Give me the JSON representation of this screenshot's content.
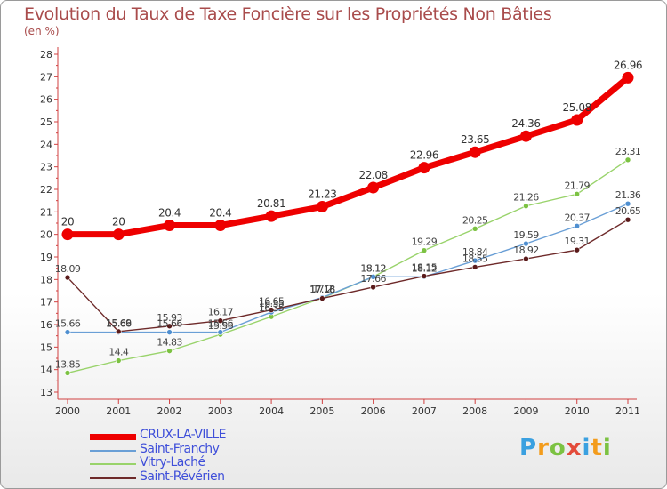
{
  "title": "Evolution du Taux de Taxe Foncière sur les Propriétés Non Bâties",
  "unit_label": "(en %)",
  "logo": {
    "letters": [
      "P",
      "r",
      "o",
      "x",
      "i",
      "t",
      "i"
    ],
    "colors": [
      "#3aa0e0",
      "#f39c1c",
      "#7cc242",
      "#e34b3a",
      "#3aa0e0",
      "#f39c1c",
      "#7cc242"
    ]
  },
  "chart_data": {
    "type": "line",
    "x": [
      "2000",
      "2001",
      "2002",
      "2003",
      "2004",
      "2005",
      "2006",
      "2007",
      "2008",
      "2009",
      "2010",
      "2011"
    ],
    "ylim": [
      13,
      28
    ],
    "yticks": [
      "13",
      "14",
      "15",
      "16",
      "17",
      "18",
      "19",
      "20",
      "21",
      "22",
      "23",
      "24",
      "25",
      "26",
      "27",
      "28"
    ],
    "grid": false,
    "legend_position": "bottom-left",
    "series": [
      {
        "name": "CRUX-LA-VILLE",
        "color": "#ee0000",
        "values": [
          20,
          20,
          20.4,
          20.4,
          20.81,
          21.23,
          22.08,
          22.96,
          23.65,
          24.36,
          25.08,
          26.96
        ],
        "labels": [
          "20",
          "20",
          "20.4",
          "20.4",
          "20.81",
          "21.23",
          "22.08",
          "22.96",
          "23.65",
          "24.36",
          "25.08",
          "26.96"
        ]
      },
      {
        "name": "Saint-Franchy",
        "color": "#6a9fd6",
        "values": [
          15.66,
          15.66,
          15.66,
          15.66,
          16.55,
          17.2,
          18.12,
          18.12,
          18.84,
          19.59,
          20.37,
          21.36
        ],
        "labels": [
          "15.66",
          "15.66",
          "15.66",
          "15.66",
          "16.55",
          "17.2",
          "18.12",
          "18.12",
          "18.84",
          "19.59",
          "20.37",
          "21.36"
        ]
      },
      {
        "name": "Vitry-Laché",
        "color": "#99d36b",
        "values": [
          13.85,
          14.4,
          14.83,
          15.56,
          16.35,
          17.18,
          18.12,
          19.29,
          20.25,
          21.26,
          21.79,
          23.31
        ],
        "labels": [
          "13.85",
          "14.4",
          "14.83",
          "15.56",
          "16.35",
          "17.18",
          "18.12",
          "19.29",
          "20.25",
          "21.26",
          "21.79",
          "23.31"
        ]
      },
      {
        "name": "Saint-Révérien",
        "color": "#6e2a2a",
        "values": [
          18.09,
          15.69,
          15.93,
          16.17,
          16.65,
          17.16,
          17.66,
          18.15,
          18.55,
          18.92,
          19.31,
          20.65
        ],
        "labels": [
          "18.09",
          "15.69",
          "15.93",
          "16.17",
          "16.65",
          "17.16",
          "17.66",
          "18.15",
          "18.55",
          "18.92",
          "19.31",
          "20.65"
        ]
      }
    ]
  }
}
